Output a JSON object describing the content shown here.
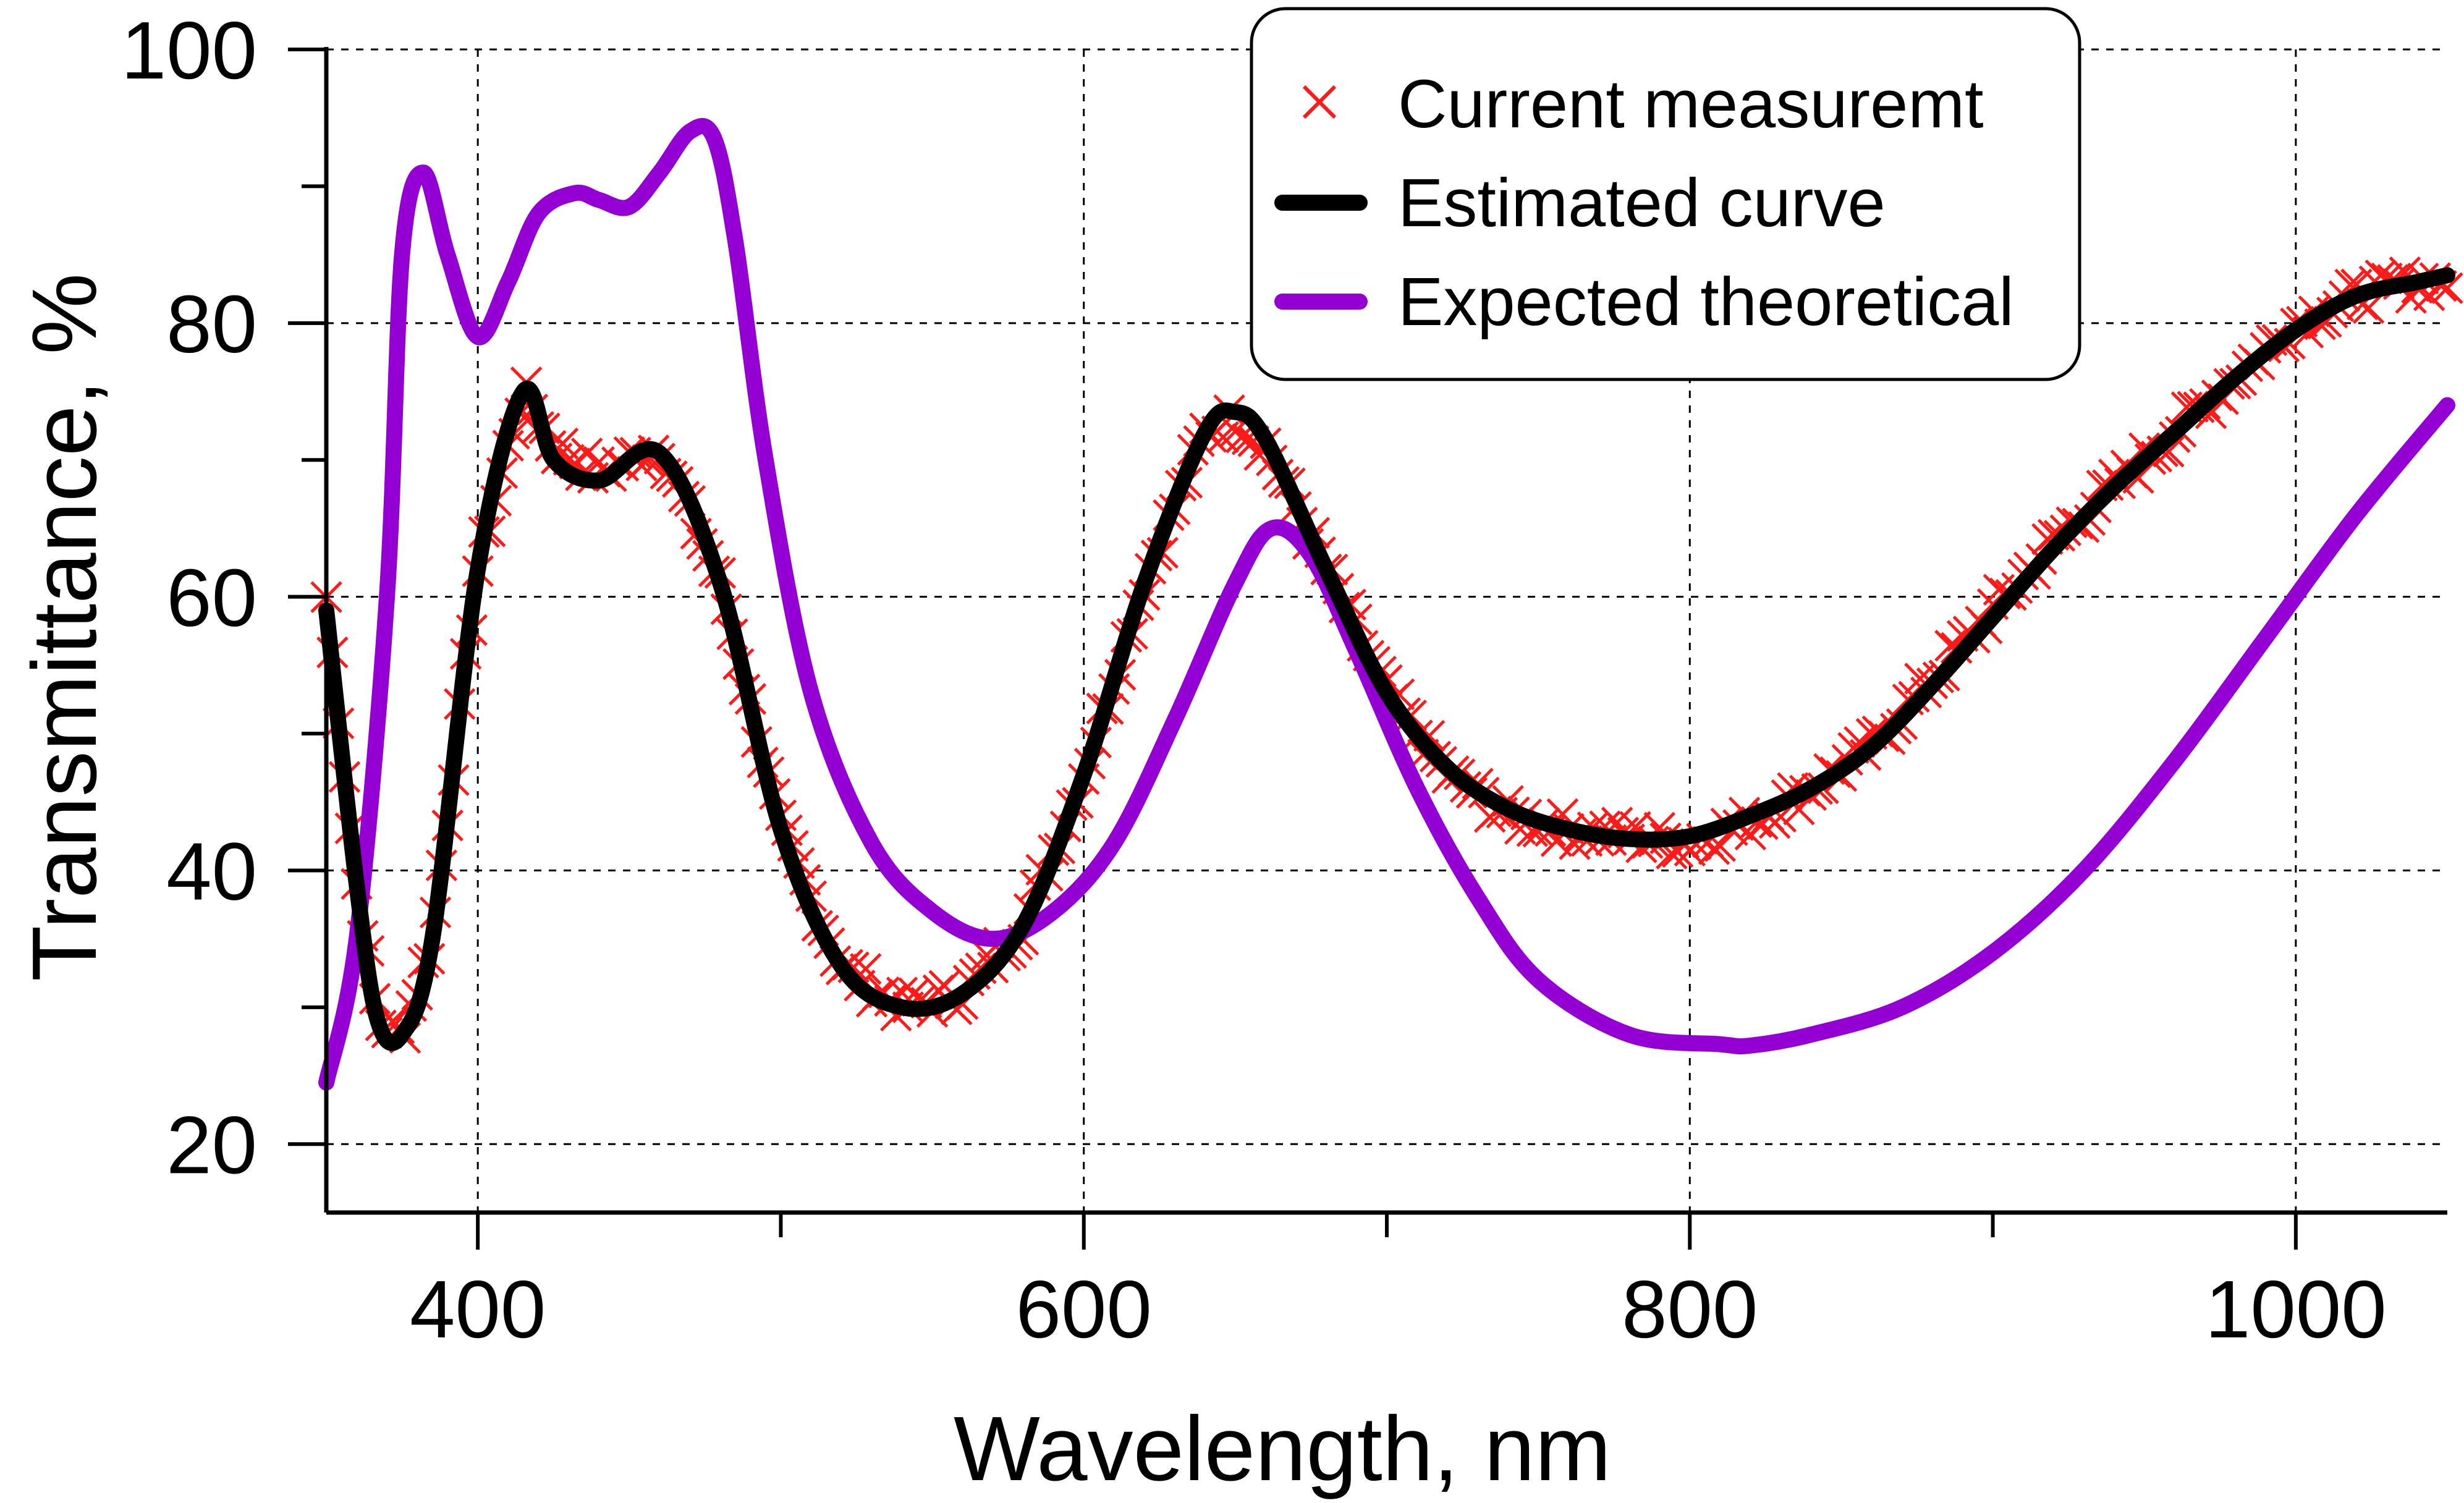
{
  "chart_data": {
    "type": "line",
    "title": "",
    "xlabel": "Wavelength, nm",
    "ylabel": "Transmittance, %",
    "xlim": [
      350,
      1050
    ],
    "ylim": [
      15,
      100
    ],
    "xticks_major": [
      400,
      600,
      800,
      1000
    ],
    "xticks_minor": [
      500,
      700,
      900
    ],
    "yticks_major": [
      20,
      40,
      60,
      80,
      100
    ],
    "yticks_minor": [
      30,
      50,
      70,
      90
    ],
    "grid": true,
    "legend_position": "top-right",
    "colors": {
      "measurement": "#ff1a1a",
      "estimated": "#000000",
      "theoretical": "#9400d3"
    },
    "series": [
      {
        "name": "Current measuremt",
        "style": "markers-x",
        "color": "#ff1a1a",
        "x": [
          350,
          360,
          367,
          375,
          385,
          400,
          415,
          425,
          440,
          460,
          480,
          500,
          520,
          540,
          560,
          580,
          600,
          620,
          640,
          650,
          660,
          680,
          700,
          720,
          740,
          760,
          780,
          800,
          820,
          840,
          860,
          880,
          900,
          920,
          940,
          960,
          980,
          1000,
          1020,
          1040,
          1050
        ],
        "y": [
          60,
          39,
          29,
          28,
          35,
          62,
          75,
          71,
          69,
          71,
          61,
          43,
          33,
          30,
          31,
          36,
          47,
          61,
          72,
          73,
          71,
          62,
          53,
          47,
          44,
          43,
          42.5,
          42,
          43.5,
          46,
          49,
          54,
          59,
          64,
          68,
          72,
          76,
          80,
          82,
          83,
          83
        ]
      },
      {
        "name": "Estimated curve",
        "style": "line",
        "color": "#000000",
        "x": [
          350,
          360,
          367,
          375,
          385,
          400,
          415,
          425,
          440,
          460,
          480,
          500,
          520,
          540,
          560,
          580,
          600,
          620,
          640,
          650,
          660,
          680,
          700,
          720,
          740,
          760,
          780,
          800,
          820,
          840,
          860,
          880,
          900,
          920,
          940,
          960,
          980,
          1000,
          1020,
          1040,
          1050
        ],
        "y": [
          59,
          39,
          29,
          28,
          35,
          62,
          75,
          70,
          68.5,
          70.5,
          61,
          43,
          33,
          30,
          31,
          36,
          47,
          61,
          72,
          73.5,
          71.5,
          62,
          53,
          47.5,
          44.5,
          43,
          42.3,
          42.5,
          44,
          46,
          49,
          53.5,
          58.5,
          63.5,
          68,
          72,
          76,
          79.5,
          82,
          83,
          83.5
        ]
      },
      {
        "name": "Expected theoretical",
        "style": "line",
        "color": "#9400d3",
        "x": [
          350,
          360,
          370,
          375,
          382,
          390,
          400,
          410,
          420,
          432,
          440,
          450,
          460,
          470,
          478,
          485,
          495,
          510,
          530,
          550,
          570,
          590,
          610,
          630,
          650,
          662,
          675,
          690,
          710,
          730,
          750,
          780,
          810,
          820,
          840,
          870,
          900,
          930,
          960,
          990,
          1020,
          1050
        ],
        "y": [
          24.5,
          35,
          60,
          85,
          91,
          85,
          79,
          83,
          88,
          89.5,
          89,
          88.5,
          91,
          94,
          93.5,
          86,
          70,
          53,
          42,
          37,
          35,
          37,
          42,
          51,
          61,
          65,
          63,
          56,
          46,
          38,
          32,
          28,
          27.3,
          27.2,
          28,
          30,
          34,
          40,
          48,
          57,
          66,
          74
        ]
      }
    ]
  }
}
